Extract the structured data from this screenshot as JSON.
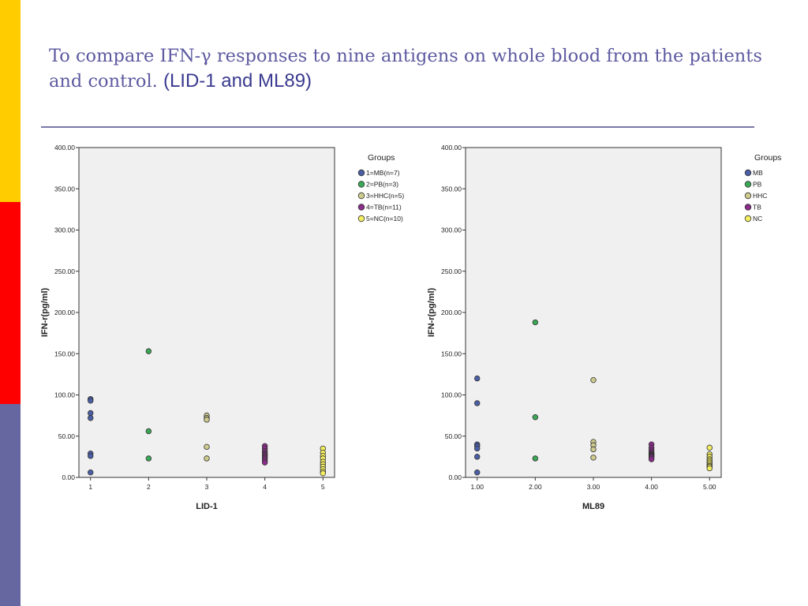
{
  "colors": {
    "bar_yellow": "#ffcc00",
    "bar_red": "#ff0000",
    "bar_purple": "#6666a0",
    "title": "#5d5aa0",
    "rule": "#7a78a8"
  },
  "slide": {
    "title_main": "To compare IFN-γ responses to nine antigens on whole blood from the patients and control. ",
    "title_suffix": "(LID-1 and ML89)"
  },
  "chart_data": [
    {
      "type": "scatter",
      "xlabel": "LID-1",
      "ylabel": "IFN-r(pg/ml)",
      "ylim": [
        0,
        400
      ],
      "yticks": [
        "0.00",
        "50.00",
        "100.00",
        "150.00",
        "200.00",
        "250.00",
        "300.00",
        "350.00",
        "400.00"
      ],
      "xlim": [
        0.8,
        5.2
      ],
      "xticks": [
        "1",
        "2",
        "3",
        "4",
        "5"
      ],
      "grid": false,
      "legend_title": "Groups",
      "legend_position": "right",
      "series": [
        {
          "name": "1=MB(n=7)",
          "color": "#4a5fa6",
          "x": [
            1,
            1,
            1,
            1,
            1,
            1,
            1
          ],
          "y": [
            95,
            93,
            78,
            72,
            29,
            26,
            6
          ]
        },
        {
          "name": "2=PB(n=3)",
          "color": "#3aa856",
          "x": [
            2,
            2,
            2
          ],
          "y": [
            153,
            56,
            23
          ]
        },
        {
          "name": "3=HHC(n=5)",
          "color": "#cfcb8e",
          "x": [
            3,
            3,
            3,
            3,
            3
          ],
          "y": [
            75,
            72,
            70,
            37,
            23
          ]
        },
        {
          "name": "4=TB(n=11)",
          "color": "#8a2c8a",
          "x": [
            4,
            4,
            4,
            4,
            4,
            4,
            4,
            4,
            4,
            4,
            4
          ],
          "y": [
            38,
            35,
            32,
            30,
            28,
            27,
            25,
            24,
            22,
            20,
            18
          ]
        },
        {
          "name": "5=NC(n=10)",
          "color": "#f4ef60",
          "x": [
            5,
            5,
            5,
            5,
            5,
            5,
            5,
            5,
            5,
            5
          ],
          "y": [
            35,
            30,
            26,
            23,
            19,
            16,
            13,
            10,
            7,
            5
          ]
        }
      ]
    },
    {
      "type": "scatter",
      "xlabel": "ML89",
      "ylabel": "IFN-r(pg/ml)",
      "ylim": [
        0,
        400
      ],
      "yticks": [
        "0.00",
        "50.00",
        "100.00",
        "150.00",
        "200.00",
        "250.00",
        "300.00",
        "350.00",
        "400.00"
      ],
      "xlim": [
        0.8,
        5.2
      ],
      "xticks": [
        "1.00",
        "2.00",
        "3.00",
        "4.00",
        "5.00"
      ],
      "grid": false,
      "legend_title": "Groups",
      "legend_position": "right",
      "series": [
        {
          "name": "MB",
          "color": "#4a5fa6",
          "x": [
            1,
            1,
            1,
            1,
            1,
            1,
            1
          ],
          "y": [
            120,
            90,
            40,
            38,
            35,
            25,
            6
          ]
        },
        {
          "name": "PB",
          "color": "#3aa856",
          "x": [
            2,
            2,
            2
          ],
          "y": [
            188,
            73,
            23
          ]
        },
        {
          "name": "HHC",
          "color": "#cfcb8e",
          "x": [
            3,
            3,
            3,
            3,
            3
          ],
          "y": [
            118,
            43,
            39,
            34,
            24
          ]
        },
        {
          "name": "TB",
          "color": "#8a2c8a",
          "x": [
            4,
            4,
            4,
            4,
            4,
            4,
            4,
            4,
            4,
            4,
            4
          ],
          "y": [
            40,
            36,
            33,
            31,
            29,
            28,
            27,
            26,
            25,
            24,
            22
          ]
        },
        {
          "name": "NC",
          "color": "#f4ef60",
          "x": [
            5,
            5,
            5,
            5,
            5,
            5,
            5,
            5,
            5,
            5
          ],
          "y": [
            36,
            28,
            25,
            22,
            20,
            18,
            16,
            14,
            13,
            11
          ]
        }
      ]
    }
  ]
}
